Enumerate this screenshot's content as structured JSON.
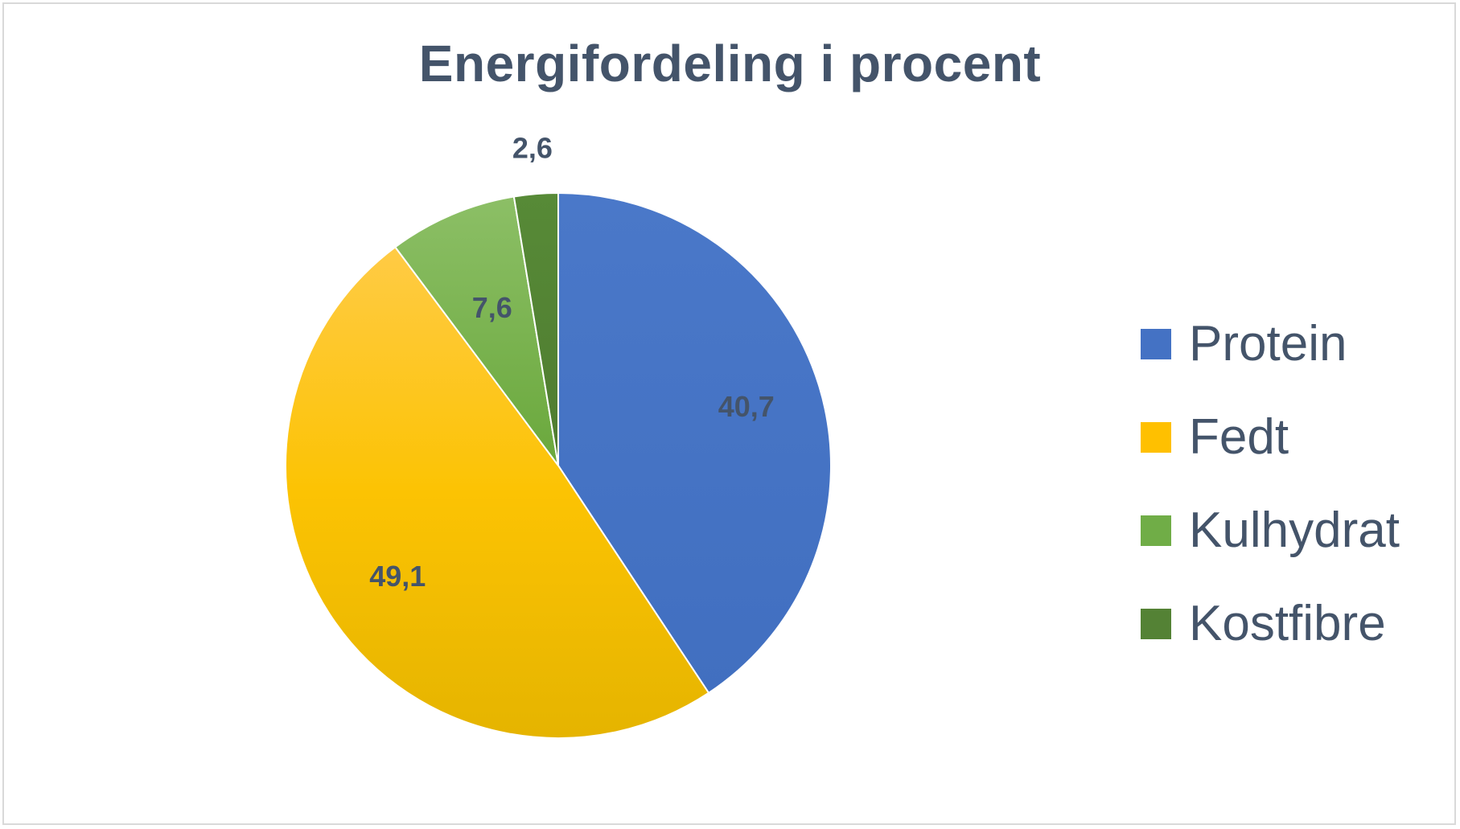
{
  "chart_data": {
    "type": "pie",
    "title": "Energifordeling i procent",
    "categories": [
      "Protein",
      "Fedt",
      "Kulhydrat",
      "Kostfibre"
    ],
    "values": [
      40.7,
      49.1,
      7.6,
      2.6
    ],
    "value_labels": [
      "40,7",
      "49,1",
      "7,6",
      "2,6"
    ],
    "colors": [
      "#4472c4",
      "#ffc000",
      "#70ad47",
      "#548235"
    ],
    "legend_position": "right",
    "start_angle": "12 o'clock",
    "direction": "clockwise"
  }
}
